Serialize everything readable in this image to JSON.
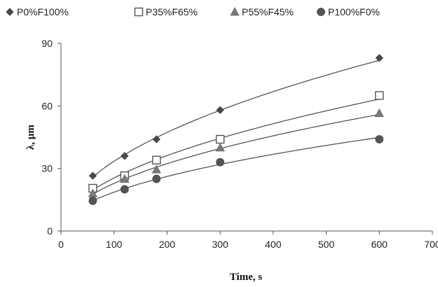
{
  "chart_data": {
    "type": "scatter",
    "xlabel": "Time, s",
    "ylabel": "λ, μm",
    "xlim": [
      0,
      700
    ],
    "ylim": [
      0,
      90
    ],
    "xticks": [
      "0",
      "100",
      "200",
      "300",
      "400",
      "500",
      "600",
      "700"
    ],
    "yticks": [
      "0",
      "30",
      "60",
      "90"
    ],
    "grid": false,
    "legend_position": "top",
    "trendlines": "power-law fit through each series",
    "series": [
      {
        "name": "P0%F100%",
        "marker": "diamond",
        "x": [
          60,
          120,
          180,
          300,
          600
        ],
        "y": [
          26.5,
          36,
          44,
          58,
          83
        ]
      },
      {
        "name": "P35%F65%",
        "marker": "square-open",
        "x": [
          60,
          120,
          180,
          300,
          600
        ],
        "y": [
          20.5,
          26.5,
          34,
          44,
          65
        ]
      },
      {
        "name": "P55%F45%",
        "marker": "triangle",
        "x": [
          60,
          120,
          180,
          300,
          600
        ],
        "y": [
          18,
          25,
          29.5,
          40,
          56.5
        ]
      },
      {
        "name": "P100%F0%",
        "marker": "circle",
        "x": [
          60,
          120,
          180,
          300,
          600
        ],
        "y": [
          14.5,
          20,
          25,
          33,
          44
        ]
      }
    ]
  }
}
